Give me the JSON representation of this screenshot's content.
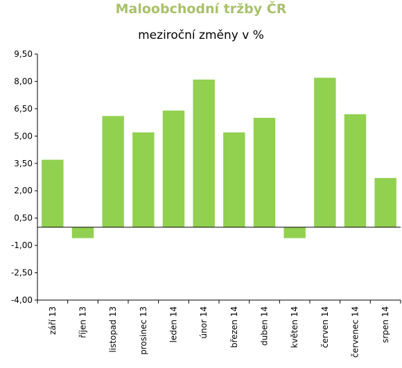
{
  "chart_data": {
    "type": "bar",
    "title": "Maloobchodní tržby ČR",
    "subtitle": "meziroční změny v %",
    "xlabel": "",
    "ylabel": "",
    "categories": [
      "září 13",
      "říjen 13",
      "listopad 13",
      "prosinec 13",
      "leden 14",
      "únor 14",
      "březen 14",
      "duben 14",
      "květen 14",
      "červen 14",
      "červenec 14",
      "srpen 14"
    ],
    "values": [
      3.7,
      -0.6,
      6.1,
      5.2,
      6.4,
      8.1,
      5.2,
      6.0,
      -0.6,
      8.2,
      6.2,
      2.7
    ],
    "ylim": [
      -4.0,
      9.5
    ],
    "yticks": [
      9.5,
      8.0,
      6.5,
      5.0,
      3.5,
      2.0,
      0.5,
      -1.0,
      -2.5,
      -4.0
    ],
    "ytick_labels": [
      "9,50",
      "8,00",
      "6,50",
      "5,00",
      "3,50",
      "2,00",
      "0,50",
      "-1,00",
      "-2,50",
      "-4,00"
    ],
    "grid": false,
    "legend": "none",
    "colors": {
      "bar": "#92d050",
      "title": "#a9c16a",
      "axis": "#000000"
    }
  }
}
